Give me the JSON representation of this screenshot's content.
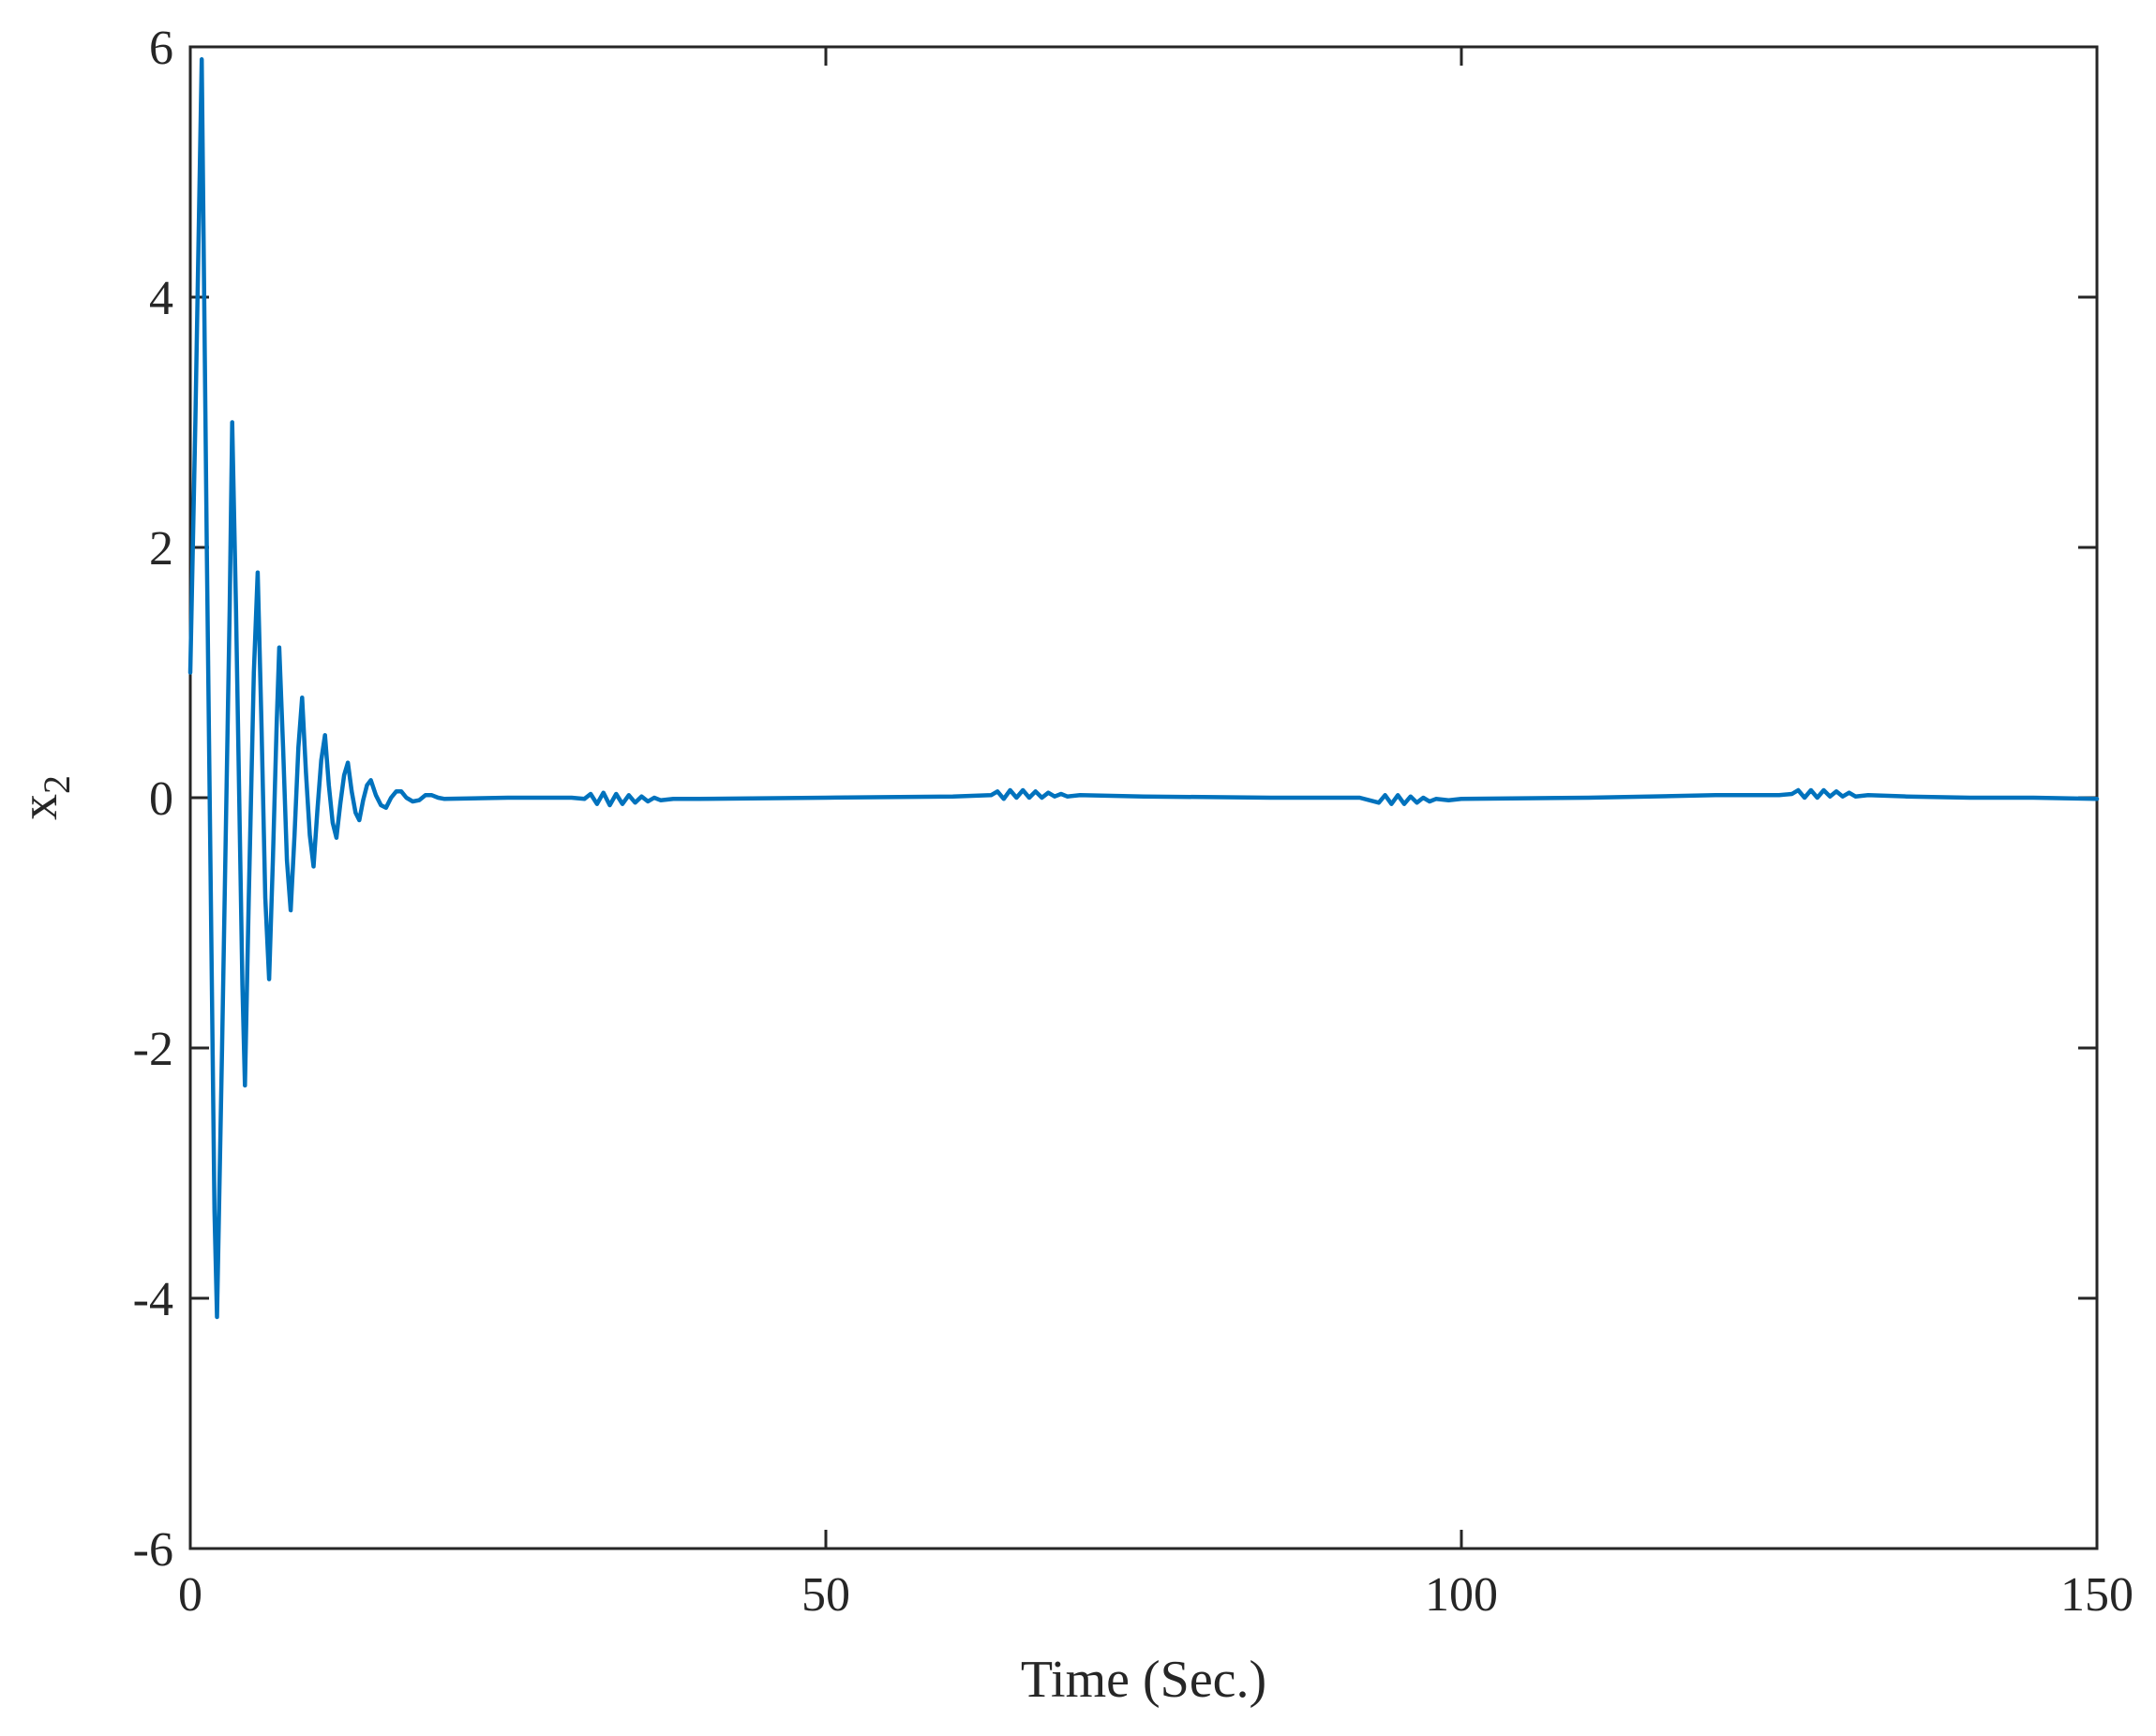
{
  "chart_data": {
    "type": "line",
    "title": "",
    "xlabel": "Time (Sec.)",
    "ylabel": {
      "base": "x",
      "subscript": "2"
    },
    "xlim": [
      0,
      150
    ],
    "ylim": [
      -6,
      6
    ],
    "xticks": [
      0,
      50,
      100,
      150
    ],
    "yticks": [
      -6,
      -4,
      -2,
      0,
      2,
      4,
      6
    ],
    "xtick_labels": [
      "0",
      "50",
      "100",
      "150"
    ],
    "ytick_labels": [
      "-6",
      "-4",
      "-2",
      "0",
      "2",
      "4",
      "6"
    ],
    "grid": false,
    "line_color": "#0072bd",
    "axis_color": "#262626",
    "series": [
      {
        "points": [
          [
            0.0,
            1.0
          ],
          [
            0.4,
            3.0
          ],
          [
            0.9,
            5.9
          ],
          [
            1.3,
            2.0
          ],
          [
            1.9,
            -3.3
          ],
          [
            2.1,
            -4.15
          ],
          [
            2.5,
            -2.0
          ],
          [
            3.1,
            1.5
          ],
          [
            3.3,
            3.0
          ],
          [
            3.6,
            1.5
          ],
          [
            4.1,
            -1.5
          ],
          [
            4.3,
            -2.3
          ],
          [
            4.6,
            -0.8
          ],
          [
            5.0,
            1.0
          ],
          [
            5.3,
            1.8
          ],
          [
            5.6,
            0.6
          ],
          [
            5.9,
            -0.8
          ],
          [
            6.2,
            -1.45
          ],
          [
            6.5,
            -0.5
          ],
          [
            6.8,
            0.6
          ],
          [
            7.0,
            1.2
          ],
          [
            7.3,
            0.4
          ],
          [
            7.6,
            -0.5
          ],
          [
            7.9,
            -0.9
          ],
          [
            8.2,
            -0.3
          ],
          [
            8.5,
            0.4
          ],
          [
            8.8,
            0.8
          ],
          [
            9.1,
            0.2
          ],
          [
            9.4,
            -0.3
          ],
          [
            9.7,
            -0.55
          ],
          [
            10.0,
            -0.1
          ],
          [
            10.3,
            0.3
          ],
          [
            10.6,
            0.5
          ],
          [
            10.9,
            0.1
          ],
          [
            11.2,
            -0.2
          ],
          [
            11.5,
            -0.32
          ],
          [
            11.8,
            -0.05
          ],
          [
            12.1,
            0.18
          ],
          [
            12.4,
            0.28
          ],
          [
            12.7,
            0.05
          ],
          [
            13.0,
            -0.12
          ],
          [
            13.3,
            -0.18
          ],
          [
            13.6,
            -0.02
          ],
          [
            13.9,
            0.1
          ],
          [
            14.2,
            0.14
          ],
          [
            14.6,
            0.02
          ],
          [
            15.0,
            -0.06
          ],
          [
            15.4,
            -0.08
          ],
          [
            15.8,
            0.0
          ],
          [
            16.2,
            0.05
          ],
          [
            16.6,
            0.05
          ],
          [
            17.0,
            0.0
          ],
          [
            17.5,
            -0.03
          ],
          [
            18.0,
            -0.02
          ],
          [
            18.5,
            0.02
          ],
          [
            19.0,
            0.02
          ],
          [
            19.5,
            0.0
          ],
          [
            20.0,
            -0.01
          ],
          [
            25.0,
            0.0
          ],
          [
            30.0,
            0.0
          ],
          [
            31.0,
            -0.01
          ],
          [
            31.5,
            0.03
          ],
          [
            32.0,
            -0.05
          ],
          [
            32.5,
            0.04
          ],
          [
            33.0,
            -0.06
          ],
          [
            33.5,
            0.03
          ],
          [
            34.0,
            -0.05
          ],
          [
            34.5,
            0.02
          ],
          [
            35.0,
            -0.04
          ],
          [
            35.5,
            0.01
          ],
          [
            36.0,
            -0.03
          ],
          [
            36.5,
            0.0
          ],
          [
            37.0,
            -0.02
          ],
          [
            38.0,
            -0.01
          ],
          [
            40.0,
            -0.01
          ],
          [
            50.0,
            0.0
          ],
          [
            60.0,
            0.01
          ],
          [
            63.0,
            0.02
          ],
          [
            63.5,
            0.05
          ],
          [
            64.0,
            -0.01
          ],
          [
            64.5,
            0.06
          ],
          [
            65.0,
            0.0
          ],
          [
            65.5,
            0.06
          ],
          [
            66.0,
            0.0
          ],
          [
            66.5,
            0.05
          ],
          [
            67.0,
            0.0
          ],
          [
            67.5,
            0.04
          ],
          [
            68.0,
            0.01
          ],
          [
            68.5,
            0.03
          ],
          [
            69.0,
            0.01
          ],
          [
            70.0,
            0.02
          ],
          [
            75.0,
            0.01
          ],
          [
            85.0,
            0.0
          ],
          [
            92.0,
            0.0
          ],
          [
            93.5,
            -0.04
          ],
          [
            94.0,
            0.02
          ],
          [
            94.5,
            -0.05
          ],
          [
            95.0,
            0.02
          ],
          [
            95.5,
            -0.05
          ],
          [
            96.0,
            0.01
          ],
          [
            96.5,
            -0.04
          ],
          [
            97.0,
            0.0
          ],
          [
            97.5,
            -0.03
          ],
          [
            98.0,
            -0.01
          ],
          [
            99.0,
            -0.02
          ],
          [
            100.0,
            -0.01
          ],
          [
            110.0,
            0.0
          ],
          [
            120.0,
            0.02
          ],
          [
            125.0,
            0.02
          ],
          [
            126.0,
            0.03
          ],
          [
            126.5,
            0.06
          ],
          [
            127.0,
            0.0
          ],
          [
            127.5,
            0.06
          ],
          [
            128.0,
            0.0
          ],
          [
            128.5,
            0.06
          ],
          [
            129.0,
            0.01
          ],
          [
            129.5,
            0.05
          ],
          [
            130.0,
            0.01
          ],
          [
            130.5,
            0.04
          ],
          [
            131.0,
            0.01
          ],
          [
            132.0,
            0.02
          ],
          [
            135.0,
            0.01
          ],
          [
            140.0,
            0.0
          ],
          [
            145.0,
            0.0
          ],
          [
            150.0,
            -0.01
          ]
        ]
      }
    ]
  }
}
